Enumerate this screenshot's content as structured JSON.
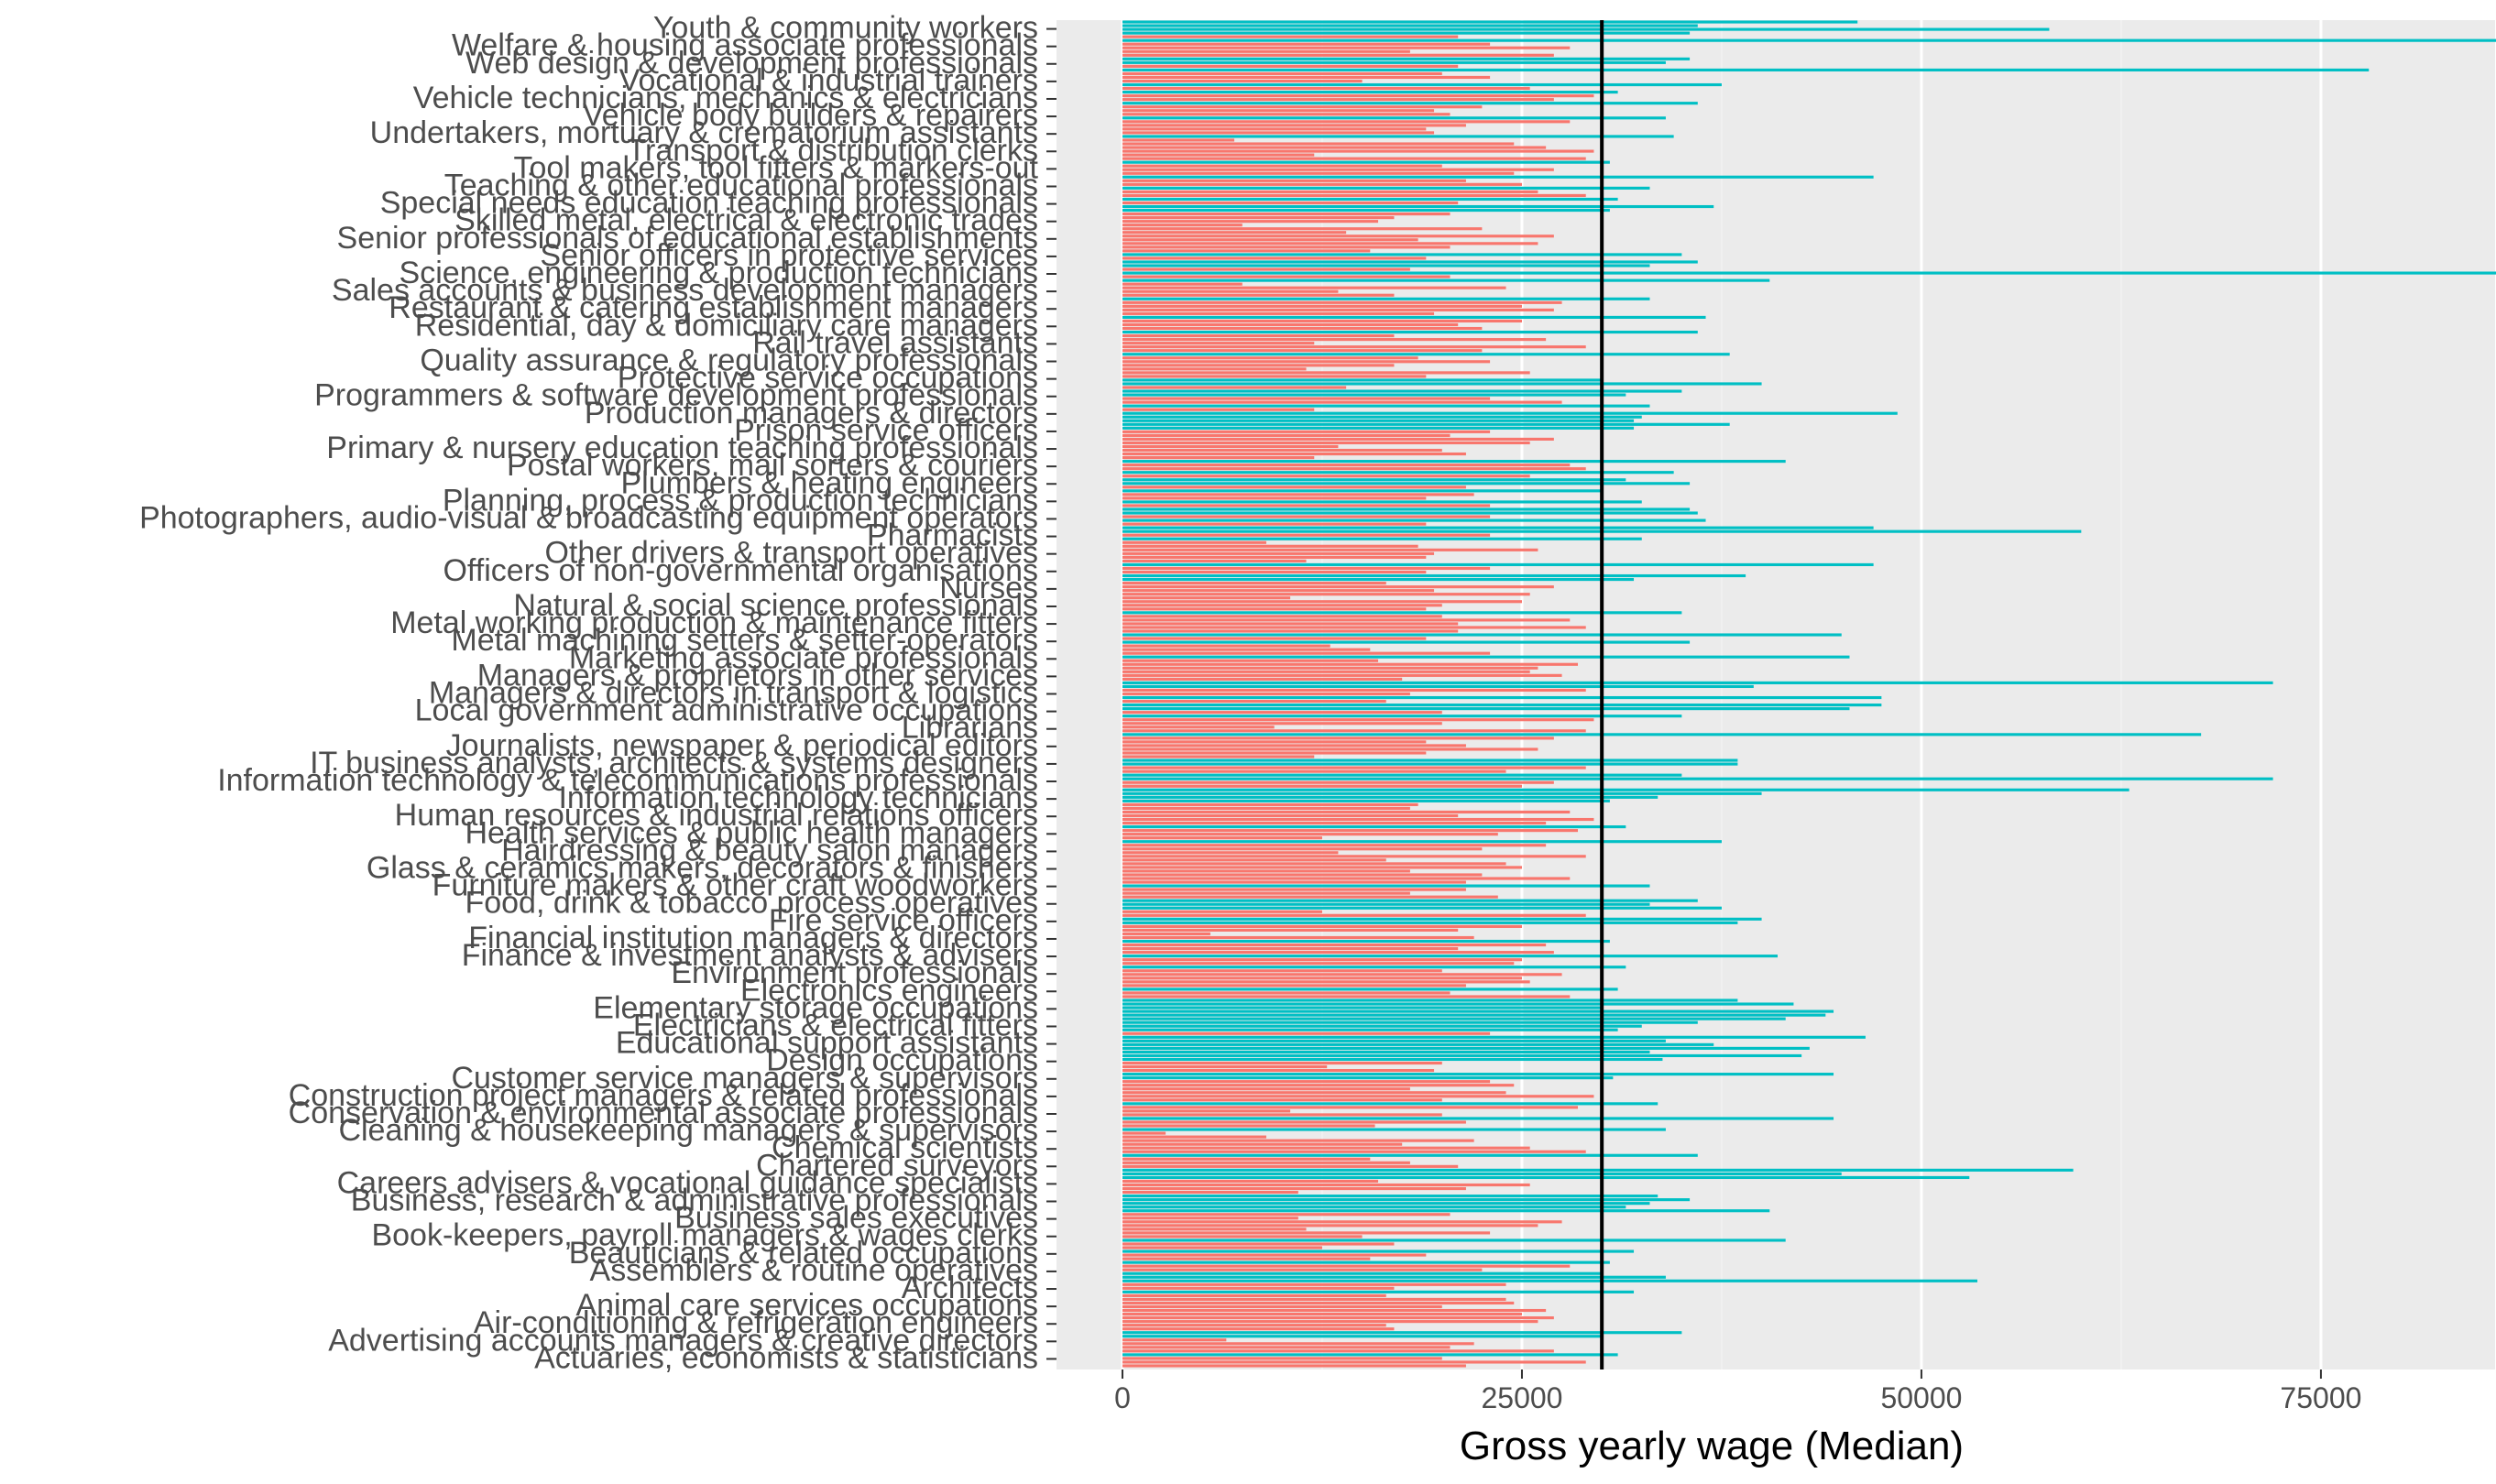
{
  "chart_data": {
    "type": "bar",
    "orientation": "horizontal",
    "xlabel": "Gross yearly wage (Median)",
    "ylabel": "",
    "xlim": [
      0,
      97000
    ],
    "x_ticks": [
      0,
      25000,
      50000,
      75000
    ],
    "x_tick_labels": [
      "0",
      "25000",
      "50000",
      "75000"
    ],
    "reference_line": 30000,
    "grid": true,
    "legend": "none",
    "colors": {
      "above": "#00BFC4",
      "below": "#F8766D",
      "panel": "#EBEBEB",
      "refline": "#000000",
      "text": "#4D4D4D"
    },
    "visible_labels": [
      "Youth & community workers",
      "Welfare & housing associate professionals",
      "Web design & development professionals",
      "Vocational & industrial trainers",
      "Vehicle technicians, mechanics & electricians",
      "Vehicle body builders & repairers",
      "Undertakers, mortuary & crematorium assistants",
      "Transport & distribution clerks",
      "Tool makers, tool fitters & markers-out",
      "Teaching & other educational professionals",
      "Special needs education teaching professionals",
      "Skilled metal, electrical & electronic trades",
      "Senior professionals of educational establishments",
      "Senior officers in protective services",
      "Science, engineering & production technicians",
      "Sales accounts & business development managers",
      "Restaurant & catering establishment managers",
      "Residential, day & domiciliary care managers",
      "Rail travel assistants",
      "Quality assurance & regulatory professionals",
      "Protective service occupations",
      "Programmers & software development professionals",
      "Production managers & directors",
      "Prison service officers",
      "Primary & nursery education teaching professionals",
      "Postal workers, mail sorters & couriers",
      "Plumbers & heating engineers",
      "Planning, process & production technicians",
      "Photographers, audio-visual & broadcasting equipment operators",
      "Pharmacists",
      "Other drivers & transport operatives",
      "Officers of non-governmental organisations",
      "Nurses",
      "Natural & social science professionals",
      "Metal working production & maintenance fitters",
      "Metal machining setters & setter-operators",
      "Marketing associate professionals",
      "Managers & proprietors in other services",
      "Managers & directors in transport & logistics",
      "Local government administrative occupations",
      "Librarians",
      "Journalists, newspaper & periodical editors",
      "IT business analysts, architects & systems designers",
      "Information technology & telecommunications professionals",
      "Information technology technicians",
      "Human resources & industrial relations officers",
      "Health services & public health managers",
      "Hairdressing & beauty salon managers",
      "Glass & ceramics makers, decorators & finishers",
      "Furniture makers & other craft woodworkers",
      "Food, drink & tobacco process operatives",
      "Fire service officers",
      "Financial institution managers & directors",
      "Finance & investment analysts & advisers",
      "Environment professionals",
      "Electronics engineers",
      "Elementary storage occupations",
      "Electricians & electrical fitters",
      "Educational support assistants",
      "Design occupations",
      "Customer service managers & supervisors",
      "Construction project managers & related professionals",
      "Conservation & environmental associate professionals",
      "Cleaning & housekeeping managers & supervisors",
      "Chemical scientists",
      "Chartered surveyors",
      "Careers advisers & vocational guidance specialists",
      "Business, research & administrative professionals",
      "Business sales executives",
      "Book-keepers, payroll managers & wages clerks",
      "Beauticians & related occupations",
      "Assemblers & routine operatives",
      "Architects",
      "Animal care services occupations",
      "Air-conditioning & refrigeration engineers",
      "Advertising accounts managers & creative directors",
      "Actuaries, economists & statisticians"
    ],
    "values": [
      21500,
      29000,
      20000,
      31000,
      27000,
      20500,
      22000,
      6500,
      30000,
      35000,
      17000,
      16500,
      26000,
      27000,
      25000,
      26500,
      20000,
      24500,
      24000,
      16500,
      32000,
      17000,
      24000,
      53500,
      34000,
      30000,
      22500,
      28000,
      30500,
      15500,
      19000,
      32000,
      12500,
      17000,
      41500,
      15000,
      23000,
      11500,
      26000,
      27500,
      11000,
      20500,
      40500,
      31500,
      33000,
      35500,
      33500,
      11000,
      21500,
      25500,
      16000,
      53000,
      45000,
      59500,
      21000,
      18000,
      15500,
      36000,
      29000,
      25500,
      17500,
      22000,
      9000,
      2700,
      34000,
      15800,
      21500,
      44500,
      20000,
      10500,
      28500,
      33500,
      20000,
      29500,
      24000,
      18000,
      24500,
      23000,
      30700,
      44500,
      19500,
      12800,
      20000,
      33800,
      42500,
      33000,
      43000,
      37000,
      34000,
      46500,
      23000,
      31000,
      32500,
      36000,
      41500,
      44000,
      44500,
      30000,
      42000,
      38500,
      28000,
      20500,
      31000,
      21500,
      25500,
      25000,
      27500,
      20000,
      31500,
      24500,
      25000,
      41000,
      27000,
      21000,
      26500,
      30500,
      22000,
      5500,
      21000,
      25000,
      38500,
      40000,
      29000,
      12500,
      37500,
      33000,
      36000,
      23500,
      18000,
      21500,
      33000,
      21500,
      28000,
      22500,
      18000,
      25000,
      24000,
      16500,
      29000,
      13500,
      22500,
      26500,
      37500,
      12500,
      23500,
      28500,
      31500,
      26500,
      29500,
      21000,
      28000,
      18000,
      18500,
      30500,
      33500,
      40000,
      63000,
      25000,
      27000,
      72000,
      35000,
      24000,
      29000,
      38500,
      38500,
      12000,
      19000,
      26000,
      21500,
      19000,
      27000,
      67500,
      29000,
      9500,
      20000,
      29500,
      35000,
      20000,
      45500,
      47500,
      16500,
      47500,
      18000,
      29000,
      39500,
      72000,
      17500,
      27500,
      25500,
      26000,
      28500,
      16000,
      45500,
      23000,
      15500,
      13000,
      35500,
      19000,
      45000,
      21000,
      29000,
      21000,
      28000,
      20000,
      35000,
      19000,
      20000,
      25000,
      10500,
      25500,
      19500,
      27000,
      16500,
      32000,
      39000,
      19000,
      23000,
      47000,
      11500,
      19000,
      19500,
      26000,
      18500,
      9000,
      32500,
      23000,
      60000,
      47000,
      19000,
      36500,
      23000,
      36000,
      35500,
      23000,
      32500,
      19000,
      22000,
      30000,
      21500,
      35500,
      31500,
      25500,
      34500,
      29000,
      28000,
      41500,
      12000,
      21500,
      20000,
      13500,
      25500,
      27000,
      20500,
      23000,
      32000,
      38000,
      32000,
      32500,
      48500,
      12000,
      33000,
      27500,
      23000,
      31500,
      35000,
      14000,
      40000,
      30000,
      19000,
      25500,
      11500,
      17000,
      23000,
      18500,
      38000,
      22500,
      29000,
      12000,
      26500,
      17000,
      36000,
      22500,
      21000,
      25000,
      36500,
      19500,
      27000,
      25000,
      27500,
      33000,
      17000,
      13500,
      24000,
      7500,
      40500,
      20500,
      89500,
      18000,
      33000,
      36000,
      19000,
      35000,
      15500,
      20500,
      26000,
      18500,
      27000,
      14000,
      22500,
      7500,
      16000,
      17000,
      20500,
      30500,
      37000,
      21000,
      31000,
      29000,
      26000,
      33000,
      25000,
      21500,
      47000,
      24500,
      27000,
      20000,
      30500,
      29000,
      12000,
      29500,
      26500,
      24500,
      7000,
      34500,
      19500,
      19000,
      21500,
      28000,
      34000,
      20500,
      19500,
      22500,
      36000,
      27000,
      29500,
      31000,
      25500,
      37500,
      15000,
      23000,
      20000,
      78000,
      21000,
      34000,
      35500,
      27000,
      18000,
      28000,
      23000,
      93500,
      21000,
      35500,
      58000,
      36000,
      46000
    ]
  }
}
